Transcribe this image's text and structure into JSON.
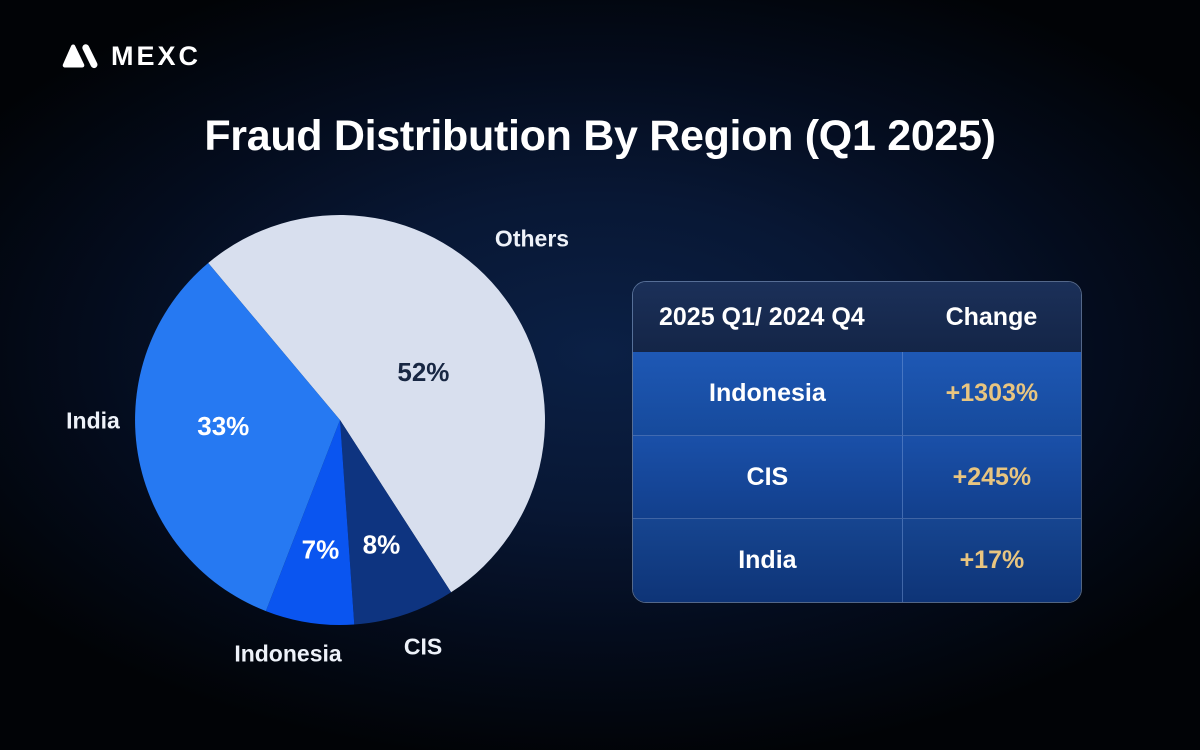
{
  "brand": {
    "name": "MEXC"
  },
  "title": "Fraud Distribution By Region (Q1 2025)",
  "chart_data": {
    "type": "pie",
    "title": "Fraud Distribution By Region (Q1 2025)",
    "unit": "percent",
    "start_angle_deg_clockwise_from_top": -40,
    "legend_position": "outside-labels",
    "slices": [
      {
        "label": "Others",
        "value": 52,
        "value_label": "52%",
        "color": "#d8dfee",
        "value_label_color": "#182743",
        "label_r": 0.47,
        "label_angle_deg": 60
      },
      {
        "label": "CIS",
        "value": 8,
        "value_label": "8%",
        "color": "#0e3480",
        "value_label_color": "#ffffff",
        "label_r": 0.64
      },
      {
        "label": "Indonesia",
        "value": 7,
        "value_label": "7%",
        "color": "#0a55f0",
        "value_label_color": "#ffffff",
        "label_r": 0.64
      },
      {
        "label": "India",
        "value": 33,
        "value_label": "33%",
        "color": "#2679f2",
        "value_label_color": "#ffffff",
        "label_r": 0.57,
        "label_angle_deg": 267
      }
    ]
  },
  "table": {
    "header": {
      "period": "2025 Q1/ 2024 Q4",
      "change": "Change"
    },
    "rows": [
      {
        "region": "Indonesia",
        "change": "+1303%"
      },
      {
        "region": "CIS",
        "change": "+245%"
      },
      {
        "region": "India",
        "change": "+17%"
      }
    ],
    "accent_color": "#e8c580"
  }
}
